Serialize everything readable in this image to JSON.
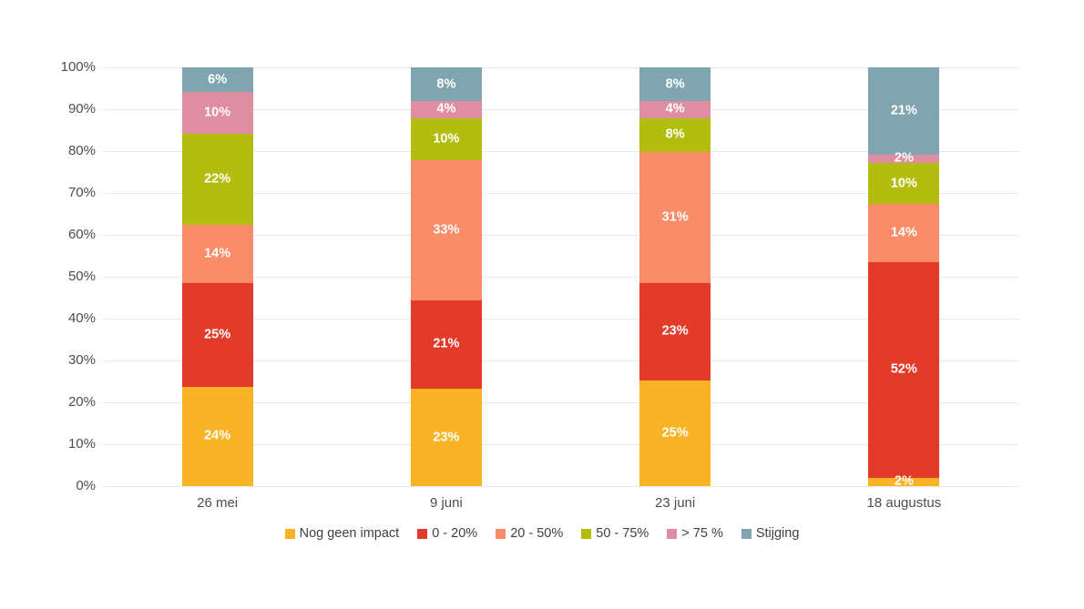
{
  "chart_data": {
    "type": "bar",
    "subtype": "stacked-percentage-column",
    "title": "",
    "xlabel": "",
    "ylabel": "",
    "categories": [
      "26 mei",
      "9 juni",
      "23 juni",
      "18 augustus"
    ],
    "series": [
      {
        "name": "Nog geen impact",
        "color": "#FBB326",
        "values": [
          24,
          23,
          25,
          2
        ]
      },
      {
        "name": "0 - 20%",
        "color": "#E23B2A",
        "values": [
          25,
          21,
          23,
          52
        ]
      },
      {
        "name": "20 - 50%",
        "color": "#F98C69",
        "values": [
          14,
          33,
          31,
          14
        ]
      },
      {
        "name": "50 - 75%",
        "color": "#B3BD10",
        "values": [
          22,
          10,
          8,
          10
        ]
      },
      {
        "name": "> 75 %",
        "color": "#DF8EA2",
        "values": [
          10,
          4,
          4,
          2
        ]
      },
      {
        "name": "Stijging",
        "color": "#7FA6B0",
        "values": [
          6,
          8,
          8,
          21
        ]
      }
    ],
    "value_suffix": "%",
    "y_axis": {
      "min": 0,
      "max": 100,
      "ticks": [
        "0%",
        "10%",
        "20%",
        "30%",
        "40%",
        "50%",
        "60%",
        "70%",
        "80%",
        "90%",
        "100%"
      ]
    },
    "grid": true,
    "gridline_color": "#e9e9e9",
    "label_color": "#ffffff",
    "axis_text_color": "#4d4d4d",
    "legend_position": "bottom",
    "background_color": "#ffffff"
  }
}
